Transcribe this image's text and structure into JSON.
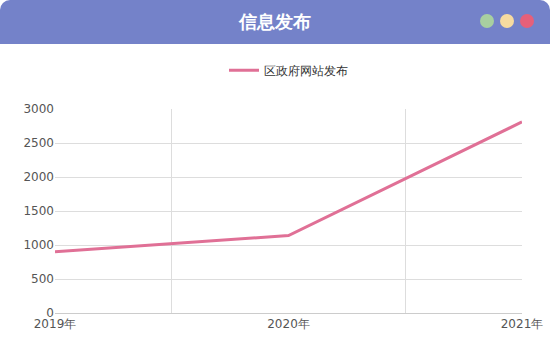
{
  "chart_data": {
    "type": "line",
    "title": "信息发布",
    "categories": [
      "2019年",
      "2020年",
      "2021年"
    ],
    "series": [
      {
        "name": "区政府网站发布",
        "color": "#e07096",
        "values": [
          900,
          1140,
          2810
        ]
      }
    ],
    "ylim": [
      0,
      3000
    ],
    "yticks": [
      0,
      500,
      1000,
      1500,
      2000,
      2500,
      3000
    ],
    "grid": true,
    "legend": "top"
  }
}
